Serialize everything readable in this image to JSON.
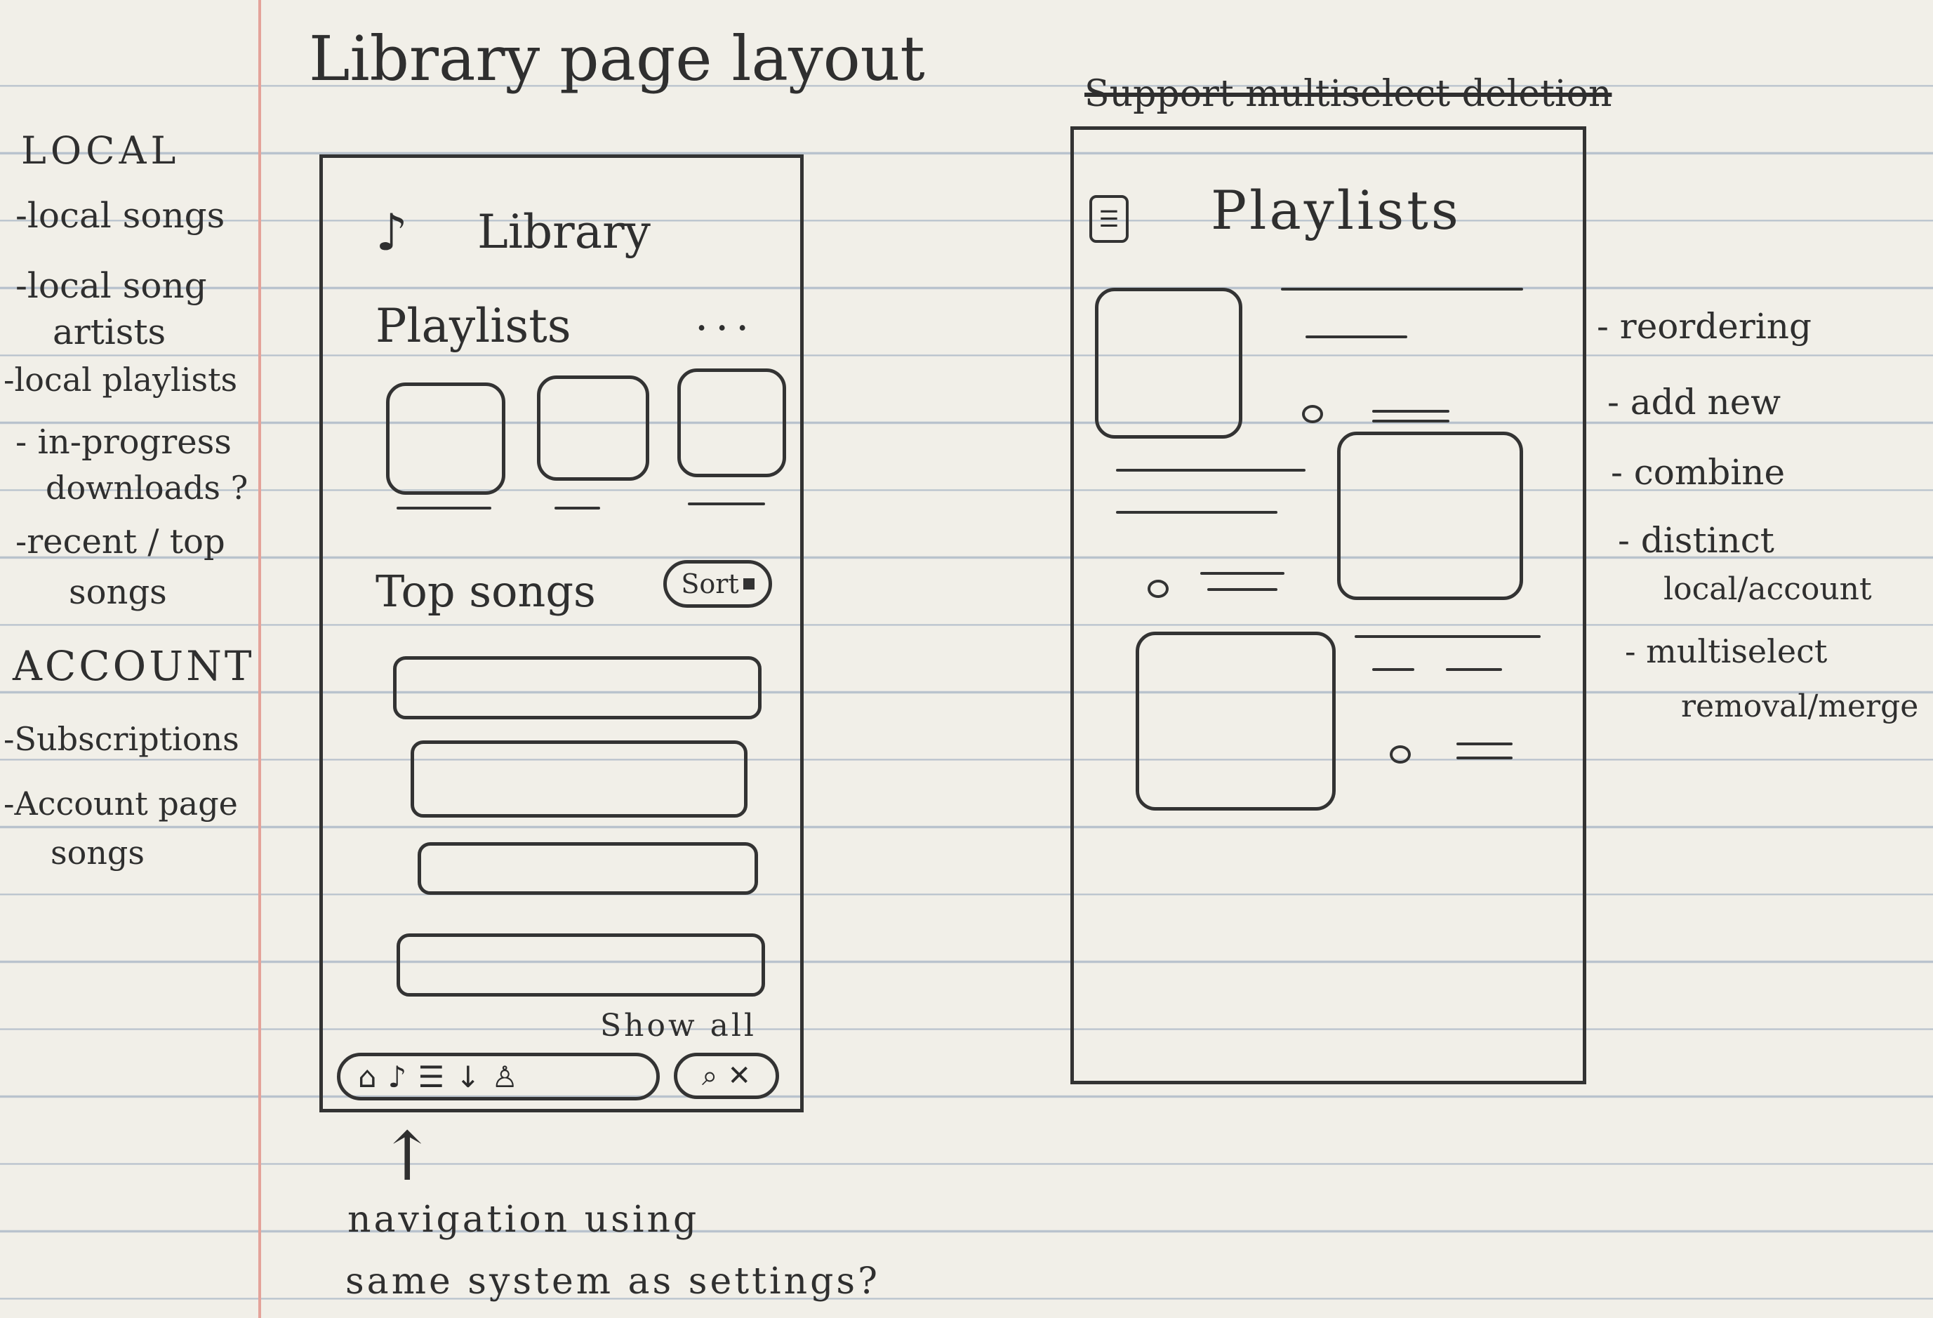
{
  "title": "Library page layout",
  "left_notes": {
    "local_heading": "LOCAL",
    "local_items": [
      "-local songs",
      "-local song",
      "artists",
      "-local playlists",
      "- in-progress",
      "downloads ?",
      "-recent / top",
      "songs"
    ],
    "account_heading": "ACCOUNT",
    "account_items": [
      "-Subscriptions",
      "-Account page",
      "songs"
    ]
  },
  "library_screen": {
    "header": "Library",
    "playlists_label": "Playlists",
    "more_label": "...",
    "top_songs_label": "Top songs",
    "sort_label": "Sort",
    "show_all_label": "Show all"
  },
  "nav_annotation": [
    "navigation using",
    "same system as settings?"
  ],
  "playlists_screen": {
    "struck_note": "Support multiselect deletion",
    "header": "Playlists"
  },
  "right_notes": [
    "- reordering",
    "- add new",
    "- combine",
    "- distinct",
    "local/account",
    "- multiselect",
    "removal/merge"
  ]
}
